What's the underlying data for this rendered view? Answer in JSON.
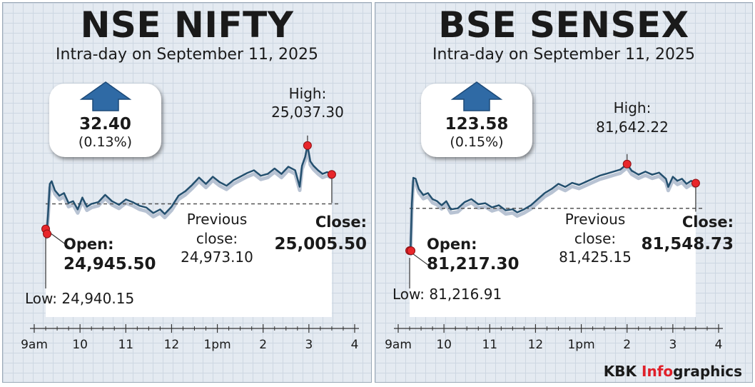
{
  "colors": {
    "line": "#234f6e",
    "shadow": "#b8c3d3",
    "marker": "#e8262b",
    "arrow": "#2f6aa5"
  },
  "charts": [
    {
      "title": "NSE NIFTY",
      "subtitle": "Intra-day on September 11, 2025",
      "change": {
        "value": "32.40",
        "percent": "(0.13%)",
        "direction": "up-arrow-icon"
      },
      "high": {
        "label": "High:",
        "value": "25,037.30"
      },
      "previous_close": {
        "line1": "Previous",
        "line2": "close:",
        "value": "24,973.10"
      },
      "open": {
        "label": "Open:",
        "value": "24,945.50"
      },
      "low": {
        "label": "Low: 24,940.15"
      },
      "close": {
        "label": "Close:",
        "value": "25,005.50"
      }
    },
    {
      "title": "BSE SENSEX",
      "subtitle": "Intra-day on September 11, 2025",
      "change": {
        "value": "123.58",
        "percent": "(0.15%)",
        "direction": "up-arrow-icon"
      },
      "high": {
        "label": "High:",
        "value": "81,642.22"
      },
      "previous_close": {
        "line1": "Previous",
        "line2": "close:",
        "value": "81,425.15"
      },
      "open": {
        "label": "Open:",
        "value": "81,217.30"
      },
      "low": {
        "label": "Low: 81,216.91"
      },
      "close": {
        "label": "Close:",
        "value": "81,548.73"
      }
    }
  ],
  "chart_data": [
    {
      "type": "line",
      "title": "NSE NIFTY",
      "subtitle": "Intra-day on September 11, 2025",
      "x_ticks": [
        "9am",
        "10",
        "11",
        "12",
        "1pm",
        "2",
        "3",
        "4"
      ],
      "x_tick_hours": [
        9,
        10,
        11,
        12,
        13,
        14,
        15,
        16
      ],
      "x_range_hours": [
        9.25,
        15.5
      ],
      "y_range": [
        24935,
        25045
      ],
      "reference_line": {
        "name": "Previous close",
        "value": 24973.1
      },
      "open": 24945.5,
      "low": 24940.15,
      "high": 25037.3,
      "close": 25005.5,
      "high_time_hours": 14.97,
      "series": [
        {
          "points": [
            [
              9.25,
              24945.5
            ],
            [
              9.27,
              24940.15
            ],
            [
              9.3,
              24960
            ],
            [
              9.34,
              24995
            ],
            [
              9.38,
              24998
            ],
            [
              9.45,
              24988
            ],
            [
              9.55,
              24982
            ],
            [
              9.65,
              24985
            ],
            [
              9.75,
              24974
            ],
            [
              9.85,
              24976
            ],
            [
              9.95,
              24967
            ],
            [
              10.05,
              24980
            ],
            [
              10.15,
              24970
            ],
            [
              10.25,
              24973
            ],
            [
              10.4,
              24975
            ],
            [
              10.55,
              24983
            ],
            [
              10.7,
              24976
            ],
            [
              10.85,
              24972
            ],
            [
              11.0,
              24978
            ],
            [
              11.15,
              24975
            ],
            [
              11.3,
              24971
            ],
            [
              11.45,
              24969
            ],
            [
              11.6,
              24963
            ],
            [
              11.75,
              24967
            ],
            [
              11.85,
              24962
            ],
            [
              12.0,
              24970
            ],
            [
              12.15,
              24982
            ],
            [
              12.3,
              24987
            ],
            [
              12.45,
              24994
            ],
            [
              12.6,
              25002
            ],
            [
              12.75,
              24995
            ],
            [
              12.9,
              25003
            ],
            [
              13.05,
              24997
            ],
            [
              13.2,
              24993
            ],
            [
              13.35,
              24999
            ],
            [
              13.5,
              25003
            ],
            [
              13.65,
              25007
            ],
            [
              13.8,
              25010
            ],
            [
              13.95,
              25004
            ],
            [
              14.1,
              25006
            ],
            [
              14.25,
              25012
            ],
            [
              14.4,
              25006
            ],
            [
              14.55,
              25014
            ],
            [
              14.7,
              25010
            ],
            [
              14.8,
              24992
            ],
            [
              14.85,
              25015
            ],
            [
              14.92,
              25025
            ],
            [
              14.97,
              25037.3
            ],
            [
              15.03,
              25020
            ],
            [
              15.1,
              25015
            ],
            [
              15.2,
              25010
            ],
            [
              15.3,
              25006
            ],
            [
              15.4,
              25008
            ],
            [
              15.5,
              25005.5
            ]
          ]
        }
      ]
    },
    {
      "type": "line",
      "title": "BSE SENSEX",
      "subtitle": "Intra-day on September 11, 2025",
      "x_ticks": [
        "9am",
        "10",
        "11",
        "12",
        "1pm",
        "2",
        "3",
        "4"
      ],
      "x_tick_hours": [
        9,
        10,
        11,
        12,
        13,
        14,
        15,
        16
      ],
      "x_range_hours": [
        9.25,
        15.5
      ],
      "y_range": [
        81200,
        81680
      ],
      "reference_line": {
        "name": "Previous close",
        "value": 81425.15
      },
      "open": 81217.3,
      "low": 81216.91,
      "high": 81642.22,
      "close": 81548.73,
      "high_time_hours": 14.0,
      "series": [
        {
          "points": [
            [
              9.25,
              81217.3
            ],
            [
              9.27,
              81216.91
            ],
            [
              9.3,
              81450
            ],
            [
              9.33,
              81575
            ],
            [
              9.38,
              81570
            ],
            [
              9.45,
              81520
            ],
            [
              9.55,
              81490
            ],
            [
              9.65,
              81500
            ],
            [
              9.75,
              81470
            ],
            [
              9.85,
              81460
            ],
            [
              9.95,
              81440
            ],
            [
              10.05,
              81460
            ],
            [
              10.15,
              81420
            ],
            [
              10.3,
              81425
            ],
            [
              10.45,
              81455
            ],
            [
              10.6,
              81470
            ],
            [
              10.75,
              81445
            ],
            [
              10.9,
              81450
            ],
            [
              11.05,
              81430
            ],
            [
              11.2,
              81440
            ],
            [
              11.35,
              81415
            ],
            [
              11.5,
              81420
            ],
            [
              11.6,
              81405
            ],
            [
              11.75,
              81420
            ],
            [
              11.9,
              81440
            ],
            [
              12.05,
              81470
            ],
            [
              12.2,
              81500
            ],
            [
              12.35,
              81520
            ],
            [
              12.5,
              81545
            ],
            [
              12.65,
              81530
            ],
            [
              12.8,
              81550
            ],
            [
              12.95,
              81540
            ],
            [
              13.1,
              81555
            ],
            [
              13.25,
              81570
            ],
            [
              13.4,
              81585
            ],
            [
              13.55,
              81595
            ],
            [
              13.7,
              81605
            ],
            [
              13.85,
              81615
            ],
            [
              14.0,
              81642.22
            ],
            [
              14.1,
              81610
            ],
            [
              14.25,
              81590
            ],
            [
              14.4,
              81605
            ],
            [
              14.55,
              81590
            ],
            [
              14.7,
              81600
            ],
            [
              14.85,
              81570
            ],
            [
              14.9,
              81530
            ],
            [
              15.0,
              81580
            ],
            [
              15.1,
              81560
            ],
            [
              15.2,
              81570
            ],
            [
              15.3,
              81545
            ],
            [
              15.4,
              81560
            ],
            [
              15.5,
              81548.73
            ]
          ]
        }
      ]
    }
  ],
  "credit": {
    "brand": "KBK",
    "accent": "Info",
    "suffix": "graphics"
  }
}
